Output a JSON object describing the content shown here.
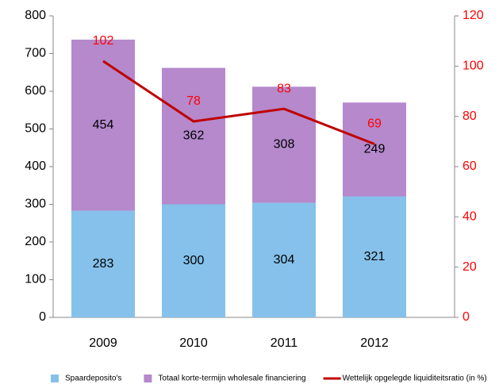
{
  "chart_data": {
    "type": "bar",
    "stacked": true,
    "categories": [
      "2009",
      "2010",
      "2011",
      "2012"
    ],
    "series": [
      {
        "name": "Spaardeposito's",
        "color": "#85c1ea",
        "values": [
          283,
          300,
          304,
          321
        ]
      },
      {
        "name": "Totaal korte-termijn wholesale financiering",
        "color": "#b589cc",
        "values": [
          454,
          362,
          308,
          249
        ]
      },
      {
        "name": "Wettelijk opgelegde liquiditeitsratio (in %)",
        "color": "#c00000",
        "type": "line",
        "axis": "y2",
        "values": [
          102,
          78,
          83,
          69
        ]
      }
    ],
    "ylim": [
      0,
      800
    ],
    "yticks": [
      0,
      100,
      200,
      300,
      400,
      500,
      600,
      700,
      800
    ],
    "y2lim": [
      0,
      120
    ],
    "y2ticks": [
      0,
      20,
      40,
      60,
      80,
      100,
      120
    ],
    "y2color": "#ff0000",
    "legend": "bottom"
  }
}
